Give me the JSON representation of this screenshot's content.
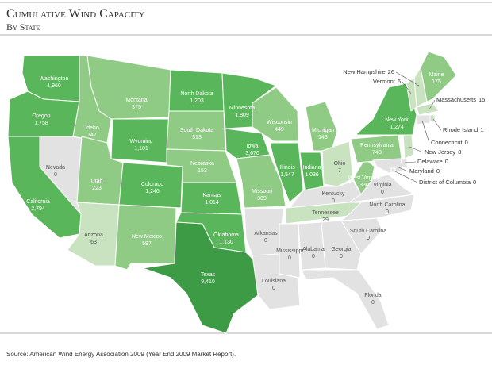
{
  "header": {
    "title": "Cumulative Wind Capacity",
    "subtitle": "By State"
  },
  "states": [
    {
      "name": "Washington",
      "value": 1960,
      "label": "1,960"
    },
    {
      "name": "Oregon",
      "value": 1758,
      "label": "1,758"
    },
    {
      "name": "California",
      "value": 2794,
      "label": "2,794"
    },
    {
      "name": "Nevada",
      "value": 0
    },
    {
      "name": "Idaho",
      "value": 147
    },
    {
      "name": "Montana",
      "value": 375
    },
    {
      "name": "Wyoming",
      "value": 1101,
      "label": "1,101"
    },
    {
      "name": "Utah",
      "value": 223
    },
    {
      "name": "Arizona",
      "value": 63
    },
    {
      "name": "Colorado",
      "value": 1246,
      "label": "1,246"
    },
    {
      "name": "New Mexico",
      "value": 597
    },
    {
      "name": "North Dakota",
      "value": 1203,
      "label": "1,203"
    },
    {
      "name": "South Dakota",
      "value": 313
    },
    {
      "name": "Nebraska",
      "value": 153
    },
    {
      "name": "Kansas",
      "value": 1014,
      "label": "1,014"
    },
    {
      "name": "Oklahoma",
      "value": 1130,
      "label": "1,130"
    },
    {
      "name": "Texas",
      "value": 9410,
      "label": "9,410"
    },
    {
      "name": "Minnesota",
      "value": 1809,
      "label": "1,809"
    },
    {
      "name": "Iowa",
      "value": 3670,
      "label": "3,670"
    },
    {
      "name": "Missouri",
      "value": 309
    },
    {
      "name": "Arkansas",
      "value": 0
    },
    {
      "name": "Louisiana",
      "value": 0
    },
    {
      "name": "Wisconsin",
      "value": 449
    },
    {
      "name": "Illinois",
      "value": 1547,
      "label": "1,547"
    },
    {
      "name": "Michigan",
      "value": 143
    },
    {
      "name": "Indiana",
      "value": 1036,
      "label": "1,036"
    },
    {
      "name": "Ohio",
      "value": 7
    },
    {
      "name": "Kentucky",
      "value": 0
    },
    {
      "name": "Tennessee",
      "value": 29
    },
    {
      "name": "Mississippi",
      "value": 0
    },
    {
      "name": "Alabama",
      "value": 0
    },
    {
      "name": "Georgia",
      "value": 0
    },
    {
      "name": "Florida",
      "value": 0
    },
    {
      "name": "South Carolina",
      "value": 0
    },
    {
      "name": "North Carolina",
      "value": 0
    },
    {
      "name": "Virginia",
      "value": 0
    },
    {
      "name": "West Virginia",
      "value": 330
    },
    {
      "name": "Pennsylvania",
      "value": 748
    },
    {
      "name": "New York",
      "value": 1274,
      "label": "1,274"
    },
    {
      "name": "Vermont",
      "value": 6
    },
    {
      "name": "New Hampshire",
      "value": 26
    },
    {
      "name": "Maine",
      "value": 175
    },
    {
      "name": "Massachusetts",
      "value": 15
    },
    {
      "name": "Rhode Island",
      "value": 1
    },
    {
      "name": "Connecticut",
      "value": 0
    },
    {
      "name": "New Jersey",
      "value": 8
    },
    {
      "name": "Delaware",
      "value": 0
    },
    {
      "name": "Maryland",
      "value": 0
    },
    {
      "name": "District of Columbia",
      "value": 0
    }
  ],
  "footer": {
    "source": "Source: American Wind Energy Association 2009 (Year End 2009 Market Report)."
  }
}
